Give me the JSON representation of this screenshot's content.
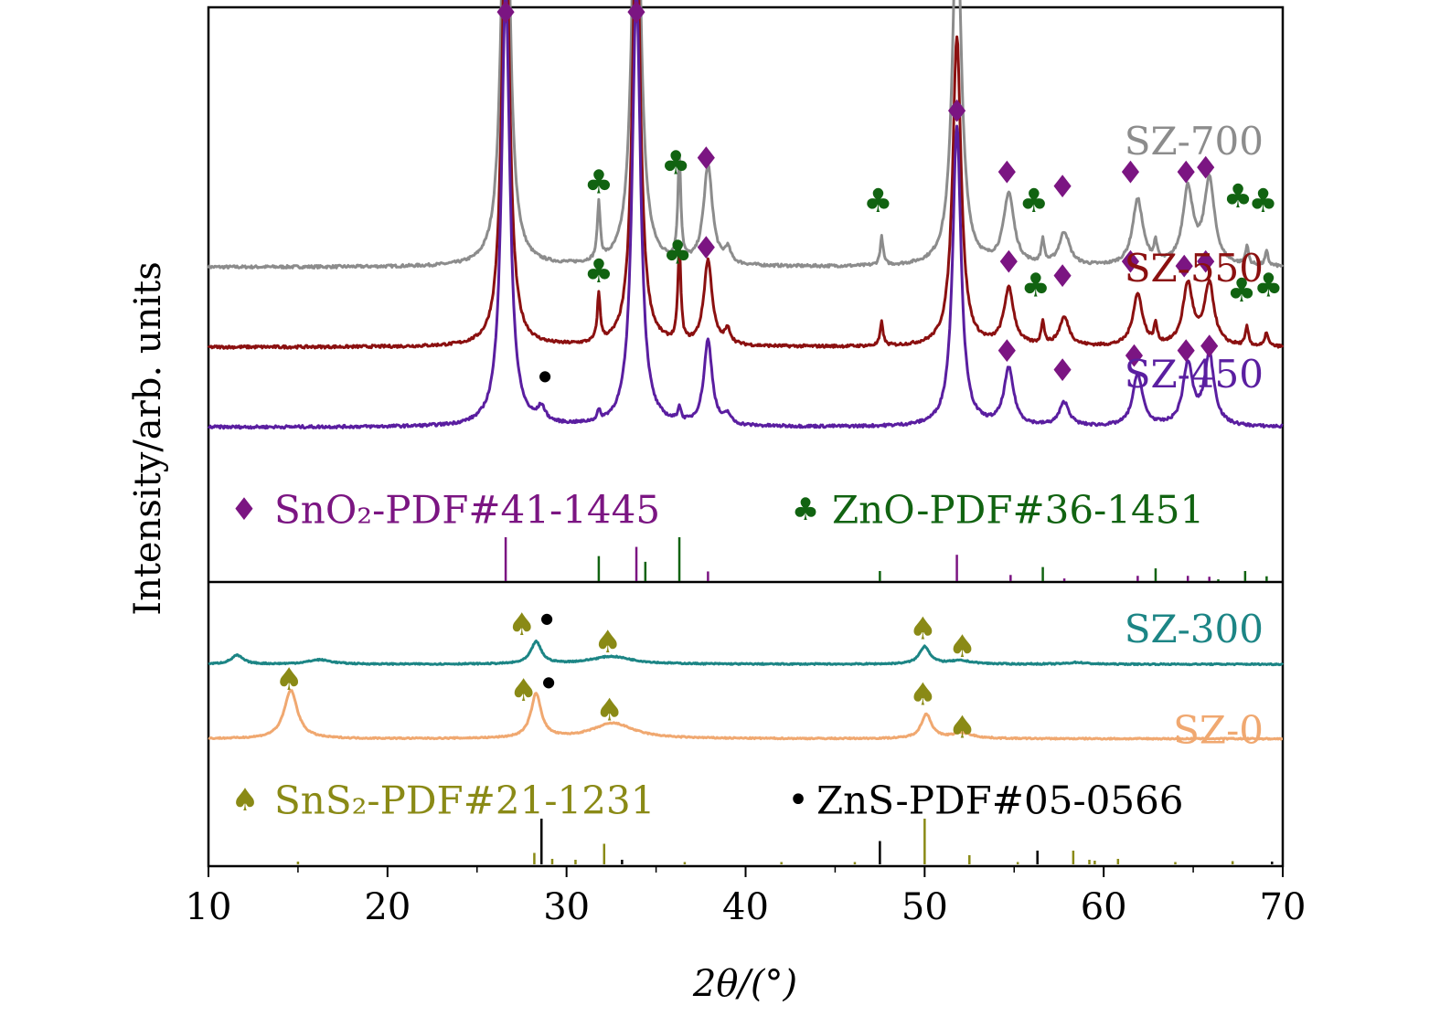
{
  "chart_data": {
    "type": "line",
    "title": "",
    "xlabel": "2θ/(°)",
    "ylabel": "Intensity/arb. units",
    "xlim": [
      10,
      70
    ],
    "xticks": [
      10,
      20,
      30,
      40,
      50,
      60,
      70
    ],
    "xtick_labels": [
      "10",
      "20",
      "30",
      "40",
      "50",
      "60",
      "70"
    ],
    "grid": false,
    "colors": {
      "SnO2": "#7b1582",
      "ZnO": "#116311",
      "SnS2": "#8a8a16",
      "ZnS": "#000000",
      "SZ-700": "#8c8c8c",
      "SZ-550": "#8b1010",
      "SZ-450": "#5a1ea0",
      "SZ-300": "#1c8585",
      "SZ-0": "#f0a870"
    },
    "series": [
      {
        "name": "SZ-700",
        "panel": "top",
        "baseline": 0.5,
        "peaks": [
          [
            26.6,
            1.0,
            0.28
          ],
          [
            33.9,
            1.0,
            0.28
          ],
          [
            37.9,
            0.21,
            0.3
          ],
          [
            51.8,
            0.76,
            0.3
          ],
          [
            54.7,
            0.15,
            0.35
          ],
          [
            57.8,
            0.07,
            0.35
          ],
          [
            61.9,
            0.14,
            0.35
          ],
          [
            64.7,
            0.16,
            0.35
          ],
          [
            65.9,
            0.18,
            0.35
          ],
          [
            31.8,
            0.12,
            0.1
          ],
          [
            36.3,
            0.22,
            0.1
          ],
          [
            47.6,
            0.06,
            0.1
          ],
          [
            56.6,
            0.05,
            0.1
          ],
          [
            62.9,
            0.04,
            0.1
          ],
          [
            68.0,
            0.04,
            0.1
          ],
          [
            69.1,
            0.03,
            0.1
          ],
          [
            39.0,
            0.03,
            0.2
          ]
        ]
      },
      {
        "name": "SZ-550",
        "panel": "top",
        "baseline": 0.33,
        "peaks": [
          [
            26.6,
            0.96,
            0.26
          ],
          [
            33.9,
            0.96,
            0.26
          ],
          [
            37.9,
            0.18,
            0.28
          ],
          [
            51.8,
            0.66,
            0.28
          ],
          [
            54.7,
            0.12,
            0.33
          ],
          [
            57.8,
            0.06,
            0.33
          ],
          [
            61.9,
            0.11,
            0.33
          ],
          [
            64.7,
            0.13,
            0.33
          ],
          [
            65.9,
            0.13,
            0.33
          ],
          [
            31.8,
            0.1,
            0.1
          ],
          [
            36.3,
            0.2,
            0.1
          ],
          [
            47.6,
            0.05,
            0.1
          ],
          [
            56.6,
            0.05,
            0.1
          ],
          [
            62.9,
            0.04,
            0.1
          ],
          [
            68.0,
            0.04,
            0.1
          ],
          [
            69.1,
            0.03,
            0.1
          ],
          [
            39.0,
            0.03,
            0.2
          ]
        ]
      },
      {
        "name": "SZ-450",
        "panel": "top",
        "baseline": 0.16,
        "peaks": [
          [
            26.6,
            0.93,
            0.28
          ],
          [
            33.9,
            0.93,
            0.28
          ],
          [
            37.9,
            0.18,
            0.28
          ],
          [
            51.8,
            0.64,
            0.28
          ],
          [
            54.7,
            0.12,
            0.33
          ],
          [
            57.8,
            0.05,
            0.33
          ],
          [
            61.9,
            0.11,
            0.33
          ],
          [
            64.7,
            0.13,
            0.33
          ],
          [
            65.9,
            0.15,
            0.33
          ],
          [
            28.6,
            0.03,
            0.25
          ],
          [
            31.8,
            0.02,
            0.1
          ],
          [
            36.3,
            0.03,
            0.1
          ],
          [
            39.0,
            0.02,
            0.2
          ]
        ]
      },
      {
        "name": "SZ-300",
        "panel": "bottom",
        "baseline": 0.7,
        "peaks": [
          [
            11.6,
            0.04,
            0.4
          ],
          [
            16.2,
            0.02,
            0.8
          ],
          [
            28.3,
            0.1,
            0.35
          ],
          [
            32.5,
            0.035,
            1.4
          ],
          [
            50.0,
            0.08,
            0.35
          ],
          [
            52.0,
            0.015,
            0.8
          ],
          [
            58.5,
            0.008,
            0.6
          ]
        ]
      },
      {
        "name": "SZ-0",
        "panel": "bottom",
        "baseline": 0.36,
        "peaks": [
          [
            14.6,
            0.22,
            0.45
          ],
          [
            28.3,
            0.2,
            0.35
          ],
          [
            32.6,
            0.07,
            1.4
          ],
          [
            50.1,
            0.11,
            0.35
          ],
          [
            52.1,
            0.025,
            0.7
          ]
        ]
      }
    ],
    "reference_patterns": [
      {
        "name": "SnO2-PDF#41-1445",
        "panel": "top",
        "color_key": "SnO2",
        "lines": [
          [
            26.6,
            1.0
          ],
          [
            33.9,
            0.78
          ],
          [
            37.9,
            0.22
          ],
          [
            51.8,
            0.6
          ],
          [
            54.8,
            0.14
          ],
          [
            57.8,
            0.06
          ],
          [
            61.9,
            0.12
          ],
          [
            64.7,
            0.12
          ],
          [
            65.9,
            0.1
          ]
        ]
      },
      {
        "name": "ZnO-PDF#36-1451",
        "panel": "top",
        "color_key": "ZnO",
        "lines": [
          [
            31.8,
            0.57
          ],
          [
            34.4,
            0.44
          ],
          [
            36.3,
            1.0
          ],
          [
            47.5,
            0.23
          ],
          [
            56.6,
            0.32
          ],
          [
            62.9,
            0.29
          ],
          [
            66.4,
            0.04
          ],
          [
            67.9,
            0.23
          ],
          [
            69.1,
            0.11
          ]
        ]
      },
      {
        "name": "SnS2-PDF#21-1231",
        "panel": "bottom",
        "color_key": "SnS2",
        "lines": [
          [
            15.0,
            0.06
          ],
          [
            28.2,
            0.25
          ],
          [
            29.2,
            0.12
          ],
          [
            30.5,
            0.1
          ],
          [
            32.1,
            0.45
          ],
          [
            36.6,
            0.05
          ],
          [
            42.0,
            0.05
          ],
          [
            46.1,
            0.05
          ],
          [
            50.0,
            1.0
          ],
          [
            52.5,
            0.2
          ],
          [
            55.2,
            0.05
          ],
          [
            58.3,
            0.3
          ],
          [
            59.2,
            0.1
          ],
          [
            59.5,
            0.08
          ],
          [
            60.8,
            0.12
          ],
          [
            64.0,
            0.05
          ],
          [
            67.2,
            0.07
          ]
        ]
      },
      {
        "name": "ZnS-PDF#05-0566",
        "panel": "bottom",
        "color_key": "ZnS",
        "lines": [
          [
            28.6,
            1.0
          ],
          [
            33.1,
            0.1
          ],
          [
            47.5,
            0.51
          ],
          [
            56.3,
            0.3
          ],
          [
            69.4,
            0.06
          ]
        ]
      }
    ],
    "markers": [
      {
        "panel": "top",
        "x": 26.6,
        "y": 1.04,
        "symbol": "diamond"
      },
      {
        "panel": "top",
        "x": 33.9,
        "y": 1.04,
        "symbol": "diamond"
      },
      {
        "panel": "top",
        "x": 51.8,
        "y": 0.83,
        "symbol": "diamond"
      },
      {
        "panel": "top",
        "x": 37.8,
        "y": 0.73,
        "symbol": "diamond"
      },
      {
        "panel": "top",
        "x": 54.6,
        "y": 0.7,
        "symbol": "diamond"
      },
      {
        "panel": "top",
        "x": 57.7,
        "y": 0.67,
        "symbol": "diamond"
      },
      {
        "panel": "top",
        "x": 61.5,
        "y": 0.7,
        "symbol": "diamond"
      },
      {
        "panel": "top",
        "x": 64.6,
        "y": 0.7,
        "symbol": "diamond"
      },
      {
        "panel": "top",
        "x": 65.7,
        "y": 0.71,
        "symbol": "diamond"
      },
      {
        "panel": "top",
        "x": 31.8,
        "y": 0.68,
        "symbol": "club"
      },
      {
        "panel": "top",
        "x": 36.1,
        "y": 0.72,
        "symbol": "club"
      },
      {
        "panel": "top",
        "x": 47.4,
        "y": 0.64,
        "symbol": "club"
      },
      {
        "panel": "top",
        "x": 56.1,
        "y": 0.64,
        "symbol": "club"
      },
      {
        "panel": "top",
        "x": 67.5,
        "y": 0.65,
        "symbol": "club"
      },
      {
        "panel": "top",
        "x": 68.9,
        "y": 0.64,
        "symbol": "club"
      },
      {
        "panel": "top",
        "x": 37.8,
        "y": 0.54,
        "symbol": "diamond"
      },
      {
        "panel": "top",
        "x": 54.7,
        "y": 0.51,
        "symbol": "diamond"
      },
      {
        "panel": "top",
        "x": 57.7,
        "y": 0.48,
        "symbol": "diamond"
      },
      {
        "panel": "top",
        "x": 61.5,
        "y": 0.51,
        "symbol": "diamond"
      },
      {
        "panel": "top",
        "x": 64.5,
        "y": 0.5,
        "symbol": "diamond"
      },
      {
        "panel": "top",
        "x": 65.7,
        "y": 0.51,
        "symbol": "diamond"
      },
      {
        "panel": "top",
        "x": 31.8,
        "y": 0.49,
        "symbol": "club"
      },
      {
        "panel": "top",
        "x": 36.2,
        "y": 0.53,
        "symbol": "club"
      },
      {
        "panel": "top",
        "x": 56.2,
        "y": 0.46,
        "symbol": "club"
      },
      {
        "panel": "top",
        "x": 67.7,
        "y": 0.45,
        "symbol": "club"
      },
      {
        "panel": "top",
        "x": 69.2,
        "y": 0.46,
        "symbol": "club"
      },
      {
        "panel": "top",
        "x": 54.6,
        "y": 0.32,
        "symbol": "diamond"
      },
      {
        "panel": "top",
        "x": 57.7,
        "y": 0.28,
        "symbol": "diamond"
      },
      {
        "panel": "top",
        "x": 61.7,
        "y": 0.31,
        "symbol": "diamond"
      },
      {
        "panel": "top",
        "x": 64.6,
        "y": 0.32,
        "symbol": "diamond"
      },
      {
        "panel": "top",
        "x": 65.9,
        "y": 0.33,
        "symbol": "diamond"
      },
      {
        "panel": "top",
        "x": 28.8,
        "y": 0.27,
        "symbol": "dot"
      },
      {
        "panel": "bottom",
        "x": 27.5,
        "y": 0.88,
        "symbol": "spade"
      },
      {
        "panel": "bottom",
        "x": 28.9,
        "y": 0.91,
        "symbol": "dot"
      },
      {
        "panel": "bottom",
        "x": 32.3,
        "y": 0.8,
        "symbol": "spade"
      },
      {
        "panel": "bottom",
        "x": 49.9,
        "y": 0.86,
        "symbol": "spade"
      },
      {
        "panel": "bottom",
        "x": 52.1,
        "y": 0.78,
        "symbol": "spade"
      },
      {
        "panel": "bottom",
        "x": 14.5,
        "y": 0.63,
        "symbol": "spade"
      },
      {
        "panel": "bottom",
        "x": 27.6,
        "y": 0.58,
        "symbol": "spade"
      },
      {
        "panel": "bottom",
        "x": 29.0,
        "y": 0.62,
        "symbol": "dot"
      },
      {
        "panel": "bottom",
        "x": 32.4,
        "y": 0.49,
        "symbol": "spade"
      },
      {
        "panel": "bottom",
        "x": 49.9,
        "y": 0.56,
        "symbol": "spade"
      },
      {
        "panel": "bottom",
        "x": 52.1,
        "y": 0.41,
        "symbol": "spade"
      }
    ],
    "legend": {
      "top": [
        {
          "symbol": "♦",
          "label": "SnO₂-PDF#41-1445",
          "color_key": "SnO2"
        },
        {
          "symbol": "♣",
          "label": "ZnO-PDF#36-1451",
          "color_key": "ZnO"
        }
      ],
      "bottom": [
        {
          "symbol": "♠",
          "label": "SnS₂-PDF#21-1231",
          "color_key": "SnS2"
        },
        {
          "symbol": "•",
          "label": "ZnS-PDF#05-0566",
          "color_key": "ZnS"
        }
      ]
    }
  }
}
